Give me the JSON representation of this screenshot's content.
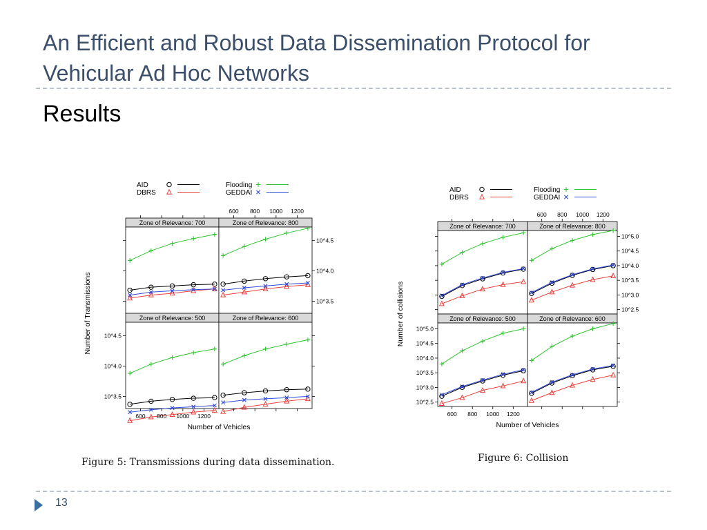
{
  "slide": {
    "title_line1": "An Efficient and Robust Data Dissemination Protocol for",
    "title_line2": "Vehicular Ad Hoc Networks",
    "subtitle": "Results",
    "page_number": "13",
    "caption_fig5": "Figure 5:  Transmissions during data dissemination.",
    "caption_fig6": "Figure 6:  Collision"
  },
  "chart_data": [
    {
      "type": "line",
      "title": "Figure 5: Transmissions during data dissemination.",
      "xlabel": "Number of Vehicles",
      "ylabel": "Number of Transmissions",
      "xlim": [
        460,
        1340
      ],
      "ylim": [
        3.3,
        4.72
      ],
      "x_ticks": [
        600,
        800,
        1000,
        1200
      ],
      "x_tick_labels": [
        "600",
        "800",
        "1000",
        "1200"
      ],
      "y_ticks": [
        3.5,
        4.0,
        4.5
      ],
      "y_tick_labels": [
        "10^3.5",
        "10^4.0",
        "10^4.5"
      ],
      "legend": [
        {
          "name": "AID",
          "marker": "o",
          "color": "#000000"
        },
        {
          "name": "DBRS",
          "marker": "△",
          "color": "#e8403c"
        },
        {
          "name": "Flooding",
          "marker": "+",
          "color": "#2ec42e"
        },
        {
          "name": "GEDDAI",
          "marker": "×",
          "color": "#2f4ad8"
        }
      ],
      "x": [
        500,
        700,
        900,
        1100,
        1300
      ],
      "panels": [
        {
          "title": "Zone of Relevance: 700",
          "series": [
            {
              "name": "AID",
              "values": [
                3.68,
                3.73,
                3.75,
                3.77,
                3.78
              ]
            },
            {
              "name": "DBRS",
              "values": [
                3.55,
                3.6,
                3.63,
                3.67,
                3.7
              ]
            },
            {
              "name": "Flooding",
              "values": [
                4.17,
                4.33,
                4.45,
                4.53,
                4.6
              ]
            },
            {
              "name": "GEDDAI",
              "values": [
                3.6,
                3.65,
                3.67,
                3.69,
                3.7
              ]
            }
          ]
        },
        {
          "title": "Zone of Relevance: 800",
          "series": [
            {
              "name": "AID",
              "values": [
                3.78,
                3.83,
                3.87,
                3.9,
                3.92
              ]
            },
            {
              "name": "DBRS",
              "values": [
                3.6,
                3.65,
                3.7,
                3.74,
                3.77
              ]
            },
            {
              "name": "Flooding",
              "values": [
                4.25,
                4.4,
                4.52,
                4.62,
                4.7
              ]
            },
            {
              "name": "GEDDAI",
              "values": [
                3.68,
                3.72,
                3.75,
                3.78,
                3.8
              ]
            }
          ]
        },
        {
          "title": "Zone of Relevance: 500",
          "series": [
            {
              "name": "AID",
              "values": [
                3.37,
                3.42,
                3.45,
                3.47,
                3.48
              ]
            },
            {
              "name": "DBRS",
              "values": [
                3.1,
                3.16,
                3.2,
                3.24,
                3.27
              ]
            },
            {
              "name": "Flooding",
              "values": [
                3.88,
                4.03,
                4.14,
                4.22,
                4.28
              ]
            },
            {
              "name": "GEDDAI",
              "values": [
                3.24,
                3.28,
                3.31,
                3.33,
                3.35
              ]
            }
          ]
        },
        {
          "title": "Zone of Relevance: 600",
          "series": [
            {
              "name": "AID",
              "values": [
                3.52,
                3.56,
                3.59,
                3.61,
                3.62
              ]
            },
            {
              "name": "DBRS",
              "values": [
                3.25,
                3.32,
                3.37,
                3.42,
                3.46
              ]
            },
            {
              "name": "Flooding",
              "values": [
                4.03,
                4.17,
                4.28,
                4.36,
                4.43
              ]
            },
            {
              "name": "GEDDAI",
              "values": [
                3.4,
                3.44,
                3.46,
                3.48,
                3.5
              ]
            }
          ]
        }
      ]
    },
    {
      "type": "line",
      "title": "Figure 6: Collision",
      "xlabel": "Number of Vehicles",
      "ylabel": "Number of collisions",
      "xlim": [
        460,
        1340
      ],
      "ylim": [
        2.35,
        5.2
      ],
      "x_ticks": [
        600,
        800,
        1000,
        1200
      ],
      "x_tick_labels": [
        "600",
        "800",
        "1000",
        "1200"
      ],
      "y_ticks": [
        2.5,
        3.0,
        3.5,
        4.0,
        4.5,
        5.0
      ],
      "y_tick_labels": [
        "10^2.5",
        "10^3.0",
        "10^3.5",
        "10^4.0",
        "10^4.5",
        "10^5.0"
      ],
      "legend": [
        {
          "name": "AID",
          "marker": "o",
          "color": "#000000"
        },
        {
          "name": "DBRS",
          "marker": "△",
          "color": "#e8403c"
        },
        {
          "name": "Flooding",
          "marker": "+",
          "color": "#2ec42e"
        },
        {
          "name": "GEDDAI",
          "marker": "×",
          "color": "#2f4ad8"
        }
      ],
      "x": [
        500,
        700,
        900,
        1100,
        1300
      ],
      "panels": [
        {
          "title": "Zone of Relevance: 700",
          "series": [
            {
              "name": "AID",
              "values": [
                2.95,
                3.32,
                3.55,
                3.75,
                3.88
              ]
            },
            {
              "name": "DBRS",
              "values": [
                2.7,
                2.97,
                3.2,
                3.35,
                3.45
              ]
            },
            {
              "name": "Flooding",
              "values": [
                4.05,
                4.45,
                4.75,
                4.97,
                5.12
              ]
            },
            {
              "name": "GEDDAI",
              "values": [
                2.98,
                3.35,
                3.58,
                3.77,
                3.9
              ]
            }
          ]
        },
        {
          "title": "Zone of Relevance: 800",
          "series": [
            {
              "name": "AID",
              "values": [
                3.05,
                3.4,
                3.67,
                3.87,
                4.0
              ]
            },
            {
              "name": "DBRS",
              "values": [
                2.82,
                3.1,
                3.33,
                3.52,
                3.65
              ]
            },
            {
              "name": "Flooding",
              "values": [
                4.18,
                4.58,
                4.86,
                5.06,
                5.2
              ]
            },
            {
              "name": "GEDDAI",
              "values": [
                3.08,
                3.43,
                3.69,
                3.89,
                4.02
              ]
            }
          ]
        },
        {
          "title": "Zone of Relevance: 500",
          "series": [
            {
              "name": "AID",
              "values": [
                2.7,
                3.0,
                3.22,
                3.42,
                3.57
              ]
            },
            {
              "name": "DBRS",
              "values": [
                2.45,
                2.65,
                2.9,
                3.05,
                3.22
              ]
            },
            {
              "name": "Flooding",
              "values": [
                3.8,
                4.25,
                4.58,
                4.85,
                5.0
              ]
            },
            {
              "name": "GEDDAI",
              "values": [
                2.75,
                3.03,
                3.25,
                3.45,
                3.6
              ]
            }
          ]
        },
        {
          "title": "Zone of Relevance: 600",
          "series": [
            {
              "name": "AID",
              "values": [
                2.8,
                3.15,
                3.4,
                3.6,
                3.72
              ]
            },
            {
              "name": "DBRS",
              "values": [
                2.55,
                2.82,
                3.07,
                3.27,
                3.42
              ]
            },
            {
              "name": "Flooding",
              "values": [
                3.92,
                4.4,
                4.75,
                5.0,
                5.18
              ]
            },
            {
              "name": "GEDDAI",
              "values": [
                2.83,
                3.18,
                3.43,
                3.63,
                3.75
              ]
            }
          ]
        }
      ]
    }
  ]
}
